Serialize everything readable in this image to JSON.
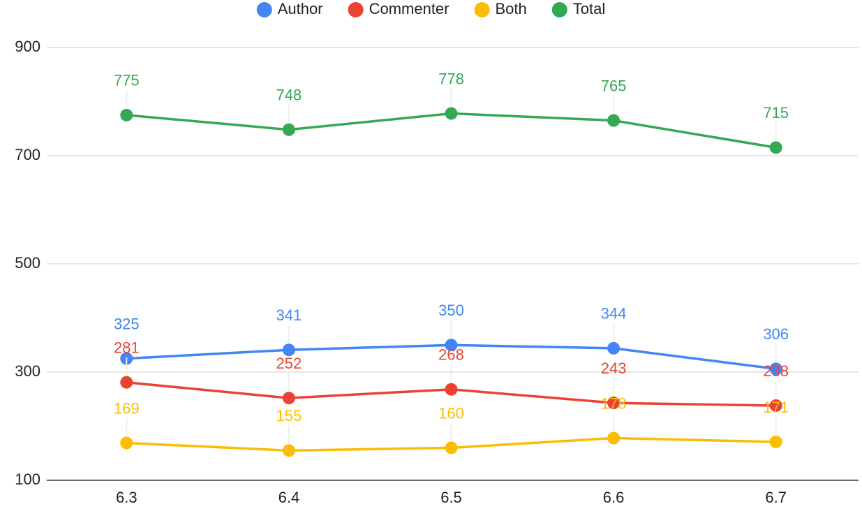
{
  "chart_data": {
    "type": "line",
    "categories": [
      "6.3",
      "6.4",
      "6.5",
      "6.6",
      "6.7"
    ],
    "series": [
      {
        "name": "Author",
        "color": "#4285f4",
        "values": [
          325,
          341,
          350,
          344,
          306
        ]
      },
      {
        "name": "Commenter",
        "color": "#ea4335",
        "values": [
          281,
          252,
          268,
          243,
          238
        ]
      },
      {
        "name": "Both",
        "color": "#fbbc04",
        "values": [
          169,
          155,
          160,
          178,
          171
        ]
      },
      {
        "name": "Total",
        "color": "#34a853",
        "values": [
          775,
          748,
          778,
          765,
          715
        ]
      }
    ],
    "ylim": [
      100,
      900
    ],
    "yticks": [
      100,
      300,
      500,
      700,
      900
    ],
    "grid": true,
    "legend": "top"
  }
}
